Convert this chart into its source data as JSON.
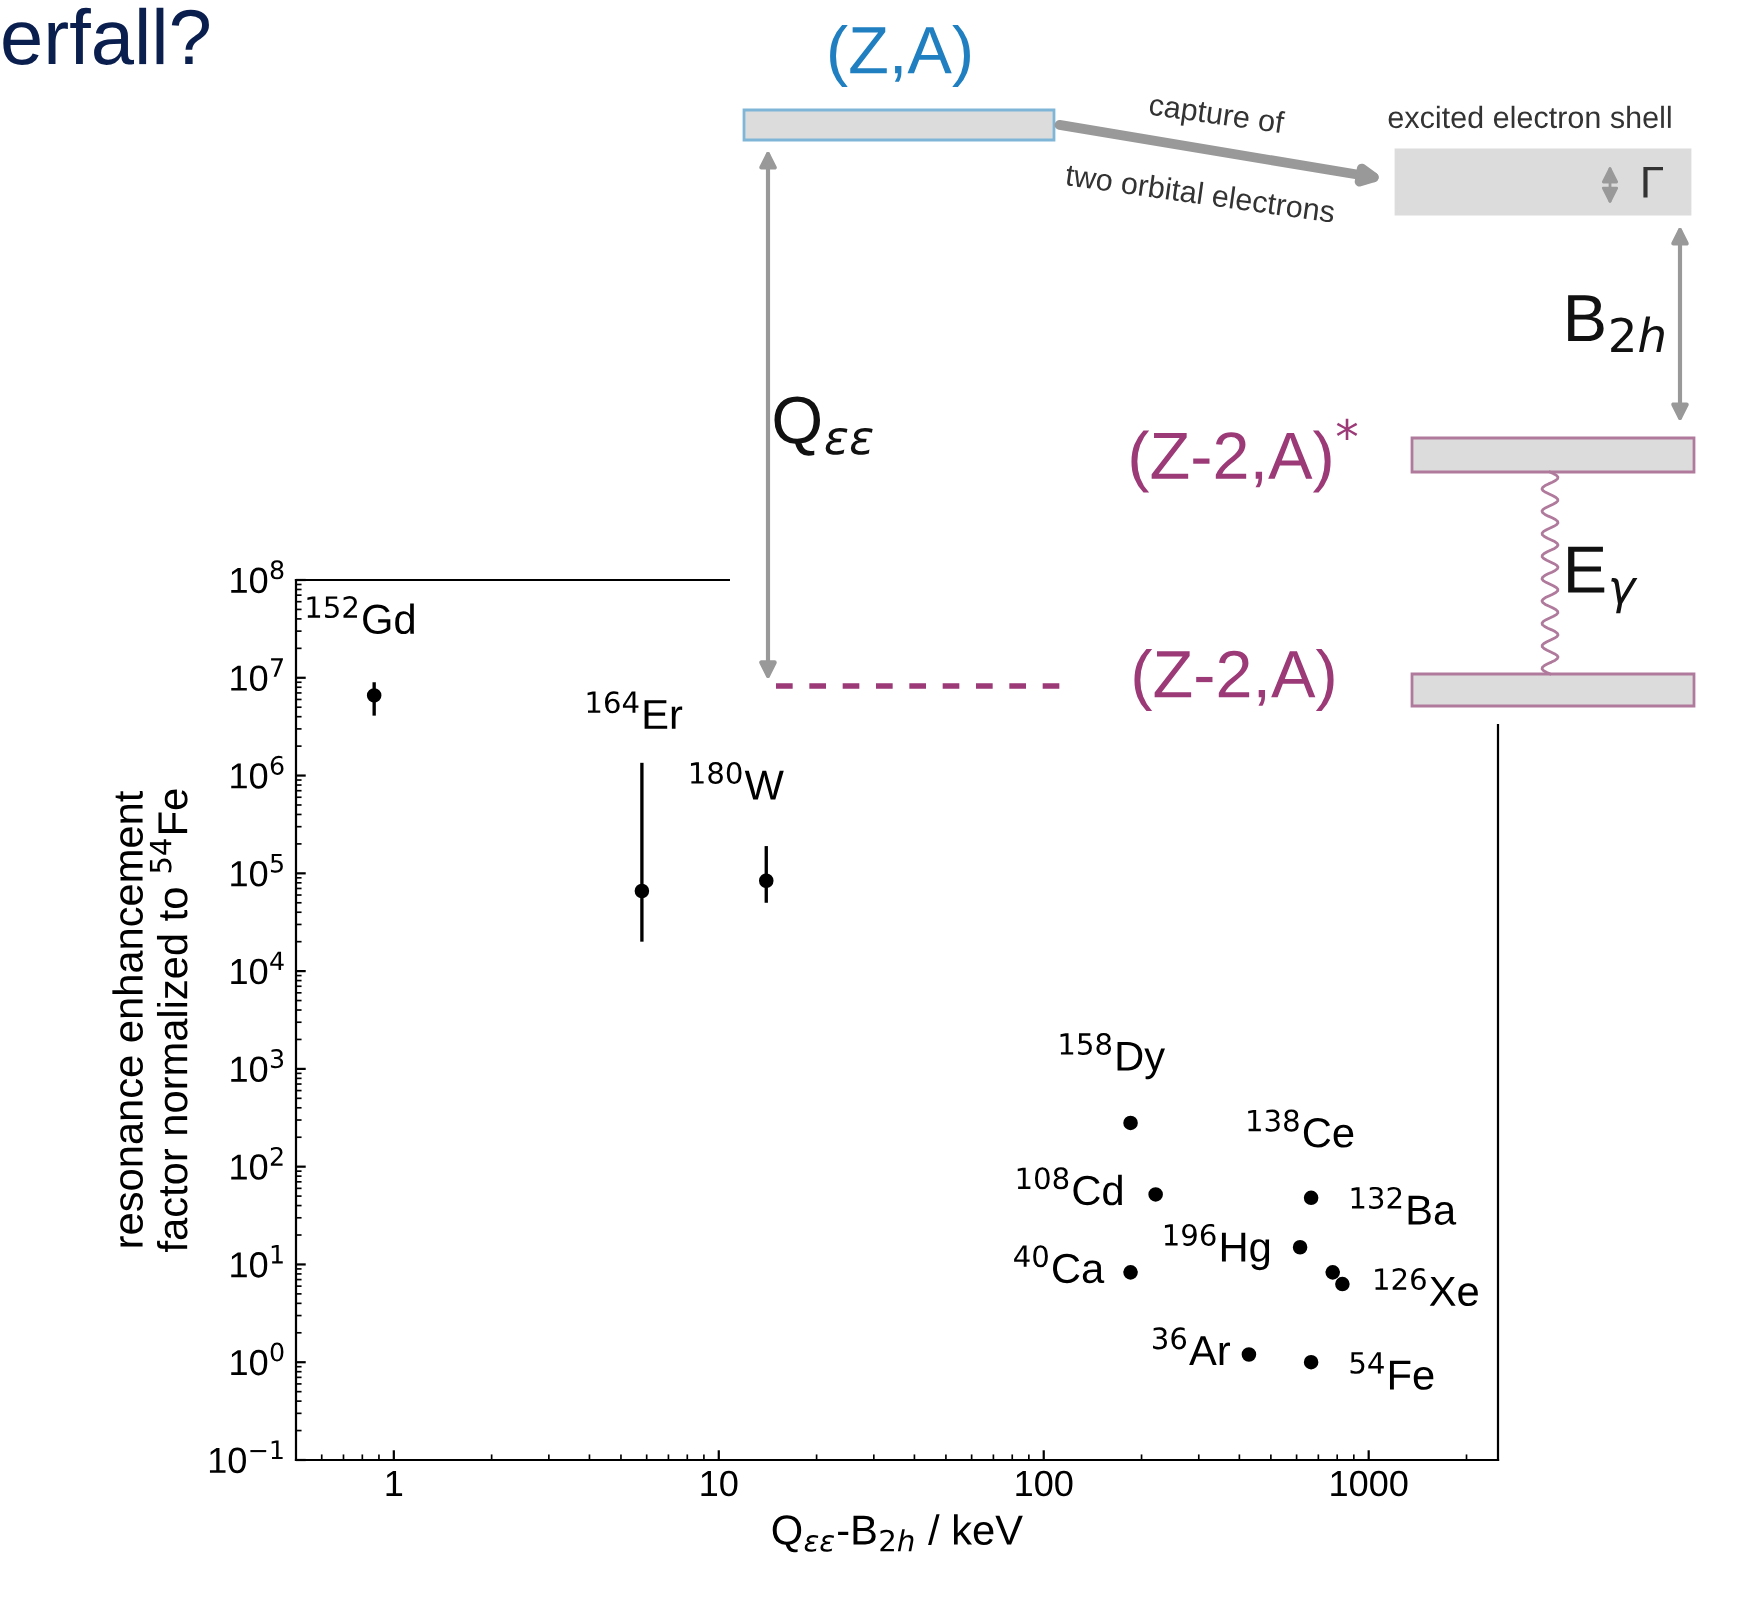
{
  "chart_data": {
    "type": "scatter",
    "title": "erfall?",
    "xlabel": "Q$_{εε}$-B$_{2h}$ / keV",
    "ylabel": "resonance enhancement\nfactor normalized to $^{54}$Fe",
    "log": "xy",
    "x": [
      0.87,
      5.8,
      14,
      185,
      221,
      185,
      665,
      615,
      775,
      830,
      428,
      665
    ],
    "series": [
      {
        "color": "#000000",
        "values": [
          6600000,
          66000,
          84000,
          280,
          52,
          8.3,
          48,
          15,
          8.3,
          6.3,
          1.2,
          1.0
        ],
        "errors": [
          [
            4100000,
            9000000
          ],
          [
            20000,
            1350000
          ],
          [
            50000,
            190000
          ],
          null,
          null,
          null,
          null,
          null,
          null,
          null,
          null,
          null
        ]
      }
    ],
    "marker": "circle",
    "xlim": [
      0.5,
      2500
    ],
    "ylim": [
      0.1,
      100000000
    ],
    "xticks": [
      1,
      10,
      100,
      1000
    ],
    "yticks": [
      {
        "value": 0.1,
        "label": "10$^{−1}$"
      },
      {
        "value": 1,
        "label": "10$^{0}$"
      },
      {
        "value": 10,
        "label": "10$^{1}$"
      },
      {
        "value": 100,
        "label": "10$^{2}$"
      },
      {
        "value": 1000,
        "label": "10$^{3}$"
      },
      {
        "value": 10000,
        "label": "10$^{4}$"
      },
      {
        "value": 100000,
        "label": "10$^{5}$"
      },
      {
        "value": 1000000,
        "label": "10$^{6}$"
      },
      {
        "value": 10000000,
        "label": "10$^{7}$"
      },
      {
        "value": 100000000,
        "label": "10$^{8}$"
      }
    ],
    "grid": false,
    "legend": false,
    "annotations": [
      {
        "text": "$^{152}$Gd",
        "x": 0.87,
        "y": 6600000
      },
      {
        "text": "$^{164}$Er",
        "x": 5.8,
        "y": 1350000
      },
      {
        "text": "$^{180}$W",
        "x": 14,
        "y": 84000
      },
      {
        "text": "$^{158}$Dy",
        "x": 185,
        "y": 280
      },
      {
        "text": "$^{108}$Cd",
        "x": 221,
        "y": 52
      },
      {
        "text": "$^{40}$Ca",
        "x": 185,
        "y": 8.3
      },
      {
        "text": "$^{138}$Ce",
        "x": 665,
        "y": 48
      },
      {
        "text": "$^{196}$Hg",
        "x": 615,
        "y": 15
      },
      {
        "text": "$^{132}$Ba",
        "x": 775,
        "y": 8.3
      },
      {
        "text": "$^{126}$Xe",
        "x": 830,
        "y": 6.3
      },
      {
        "text": "$^{36}$Ar",
        "x": 428,
        "y": 1.2
      },
      {
        "text": "$^{54}$Fe",
        "x": 665,
        "y": 1.0
      },
      "(Z,A)",
      "capture of",
      "two orbital electrons",
      "excited electron shell",
      "Γ",
      "B$_{2h}$",
      "Q$_{εε}$",
      "(Z-2,A)$^{*}$",
      "E$_{γ}$",
      "(Z-2,A)"
    ]
  }
}
